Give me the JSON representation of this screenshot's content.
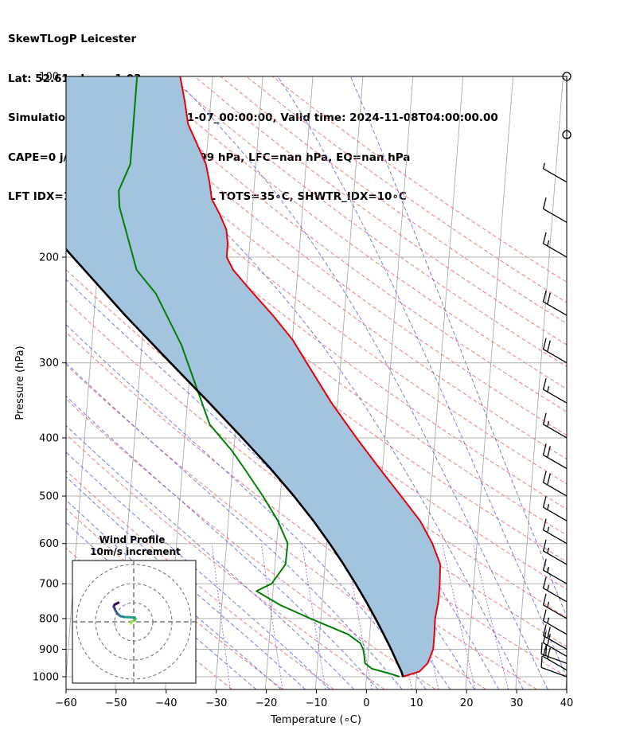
{
  "header": {
    "line1": "SkewTLogP Leicester",
    "line2": "Lat: 52.61   Lon: -1.03",
    "line3": "Simulation start time: 2024-11-07_00:00:00, Valid time: 2024-11-08T04:00:00.00",
    "line4": "CAPE=0 j/kg, CIN=0 j/kg, LCL=999 hPa, LFC=nan hPa, EQ=nan hPa",
    "line5": "LFT IDX=16∘C, K IDX=-7∘C, TOTAL TOTS=35∘C, SHWTR_IDX=10∘C"
  },
  "colors": {
    "temperature": "#e8000b",
    "dewpoint": "#008000",
    "parcel": "#000000",
    "cape_fill": "#a2c4de",
    "dry_adiabat": "#f26b6b",
    "moist_adiabat": "#5566ee",
    "mixing_ratio": "#9055d0",
    "isotherm": "#aaaaaa"
  },
  "chart_data": {
    "type": "skewt-logp",
    "xlabel": "Temperature (∘C)",
    "ylabel": "Pressure (hPa)",
    "xlim": [
      -60,
      40
    ],
    "ylim": [
      1050,
      100
    ],
    "x_ticks": [
      "−60",
      "−50",
      "−40",
      "−30",
      "−20",
      "−10",
      "0",
      "10",
      "20",
      "30",
      "40"
    ],
    "x_tick_values": [
      -60,
      -50,
      -40,
      -30,
      -20,
      -10,
      0,
      10,
      20,
      30,
      40
    ],
    "y_ticks": [
      "100",
      "200",
      "300",
      "400",
      "500",
      "600",
      "700",
      "800",
      "900",
      "1000"
    ],
    "y_tick_values": [
      100,
      200,
      300,
      400,
      500,
      600,
      700,
      800,
      900,
      1000
    ],
    "temperature": {
      "pressure": [
        1000,
        980,
        950,
        900,
        850,
        800,
        750,
        700,
        650,
        600,
        550,
        500,
        450,
        400,
        350,
        300,
        275,
        250,
        225,
        210,
        200,
        190,
        180,
        170,
        160,
        150,
        140,
        130,
        120,
        110,
        100
      ],
      "temp": [
        7.2,
        10.5,
        12.0,
        12.9,
        12.9,
        12.8,
        13.2,
        13.2,
        13.0,
        11.1,
        8.3,
        4.1,
        -0.6,
        -5.7,
        -11.2,
        -16.8,
        -19.9,
        -24.3,
        -29.6,
        -32.9,
        -34.4,
        -34.4,
        -34.9,
        -36.4,
        -38.3,
        -39.0,
        -40.0,
        -42.0,
        -44.2,
        -45.2,
        -46.5
      ]
    },
    "dewpoint": {
      "pressure": [
        1000,
        990,
        970,
        950,
        920,
        900,
        880,
        850,
        800,
        760,
        720,
        700,
        650,
        600,
        550,
        500,
        450,
        420,
        380,
        330,
        280,
        230,
        210,
        180,
        165,
        155,
        140,
        100
      ],
      "dewp": [
        6.6,
        5.0,
        1.0,
        -0.5,
        -0.8,
        -1.1,
        -1.7,
        -4.3,
        -12.1,
        -18.3,
        -23.3,
        -20.4,
        -17.9,
        -17.8,
        -20.1,
        -23.5,
        -27.6,
        -30.4,
        -35.2,
        -38.4,
        -42.1,
        -48.0,
        -52.2,
        -55.0,
        -56.6,
        -57.0,
        -55.1,
        -55.1
      ]
    },
    "parcel": {
      "pressure": [
        1000,
        980,
        950,
        900,
        850,
        800,
        750,
        700,
        650,
        600,
        550,
        500,
        450,
        400,
        350,
        300,
        250,
        200,
        150,
        100
      ],
      "temp": [
        7.3,
        6.9,
        6.0,
        4.5,
        2.8,
        0.9,
        -1.2,
        -3.6,
        -6.3,
        -9.4,
        -13.0,
        -17.3,
        -22.4,
        -28.5,
        -35.6,
        -44.0,
        -53.8,
        -65.1,
        -79.4,
        -98.0
      ]
    },
    "cape_shaded": true,
    "wind_barbs": {
      "pressure": [
        1000,
        975,
        950,
        925,
        900,
        850,
        800,
        750,
        700,
        650,
        600,
        550,
        500,
        450,
        400,
        350,
        300,
        250,
        200,
        175,
        150,
        125,
        100
      ],
      "speed_kt": [
        10,
        20,
        20,
        20,
        20,
        15,
        15,
        15,
        15,
        15,
        15,
        15,
        20,
        20,
        15,
        15,
        20,
        20,
        15,
        10,
        5,
        0,
        0
      ],
      "direction_deg": [
        290,
        300,
        290,
        300,
        300,
        300,
        300,
        300,
        300,
        300,
        300,
        300,
        300,
        300,
        300,
        300,
        300,
        300,
        300,
        300,
        300,
        0,
        0
      ]
    },
    "hodograph": {
      "title": "Wind Profile",
      "subtitle": "10m/s increment",
      "u": [
        -1.5,
        -1.5,
        -1.0,
        0.5,
        1.0,
        0.5,
        -2.0,
        -5.0,
        -7.0,
        -8.5,
        -9.5,
        -10.0,
        -10.5,
        -10.0,
        -9.0,
        -8.0
      ],
      "v": [
        -1.0,
        -0.5,
        0.2,
        0.8,
        1.5,
        2.2,
        2.4,
        2.5,
        3.0,
        4.2,
        5.8,
        7.0,
        8.0,
        9.0,
        9.5,
        10.0
      ]
    }
  }
}
